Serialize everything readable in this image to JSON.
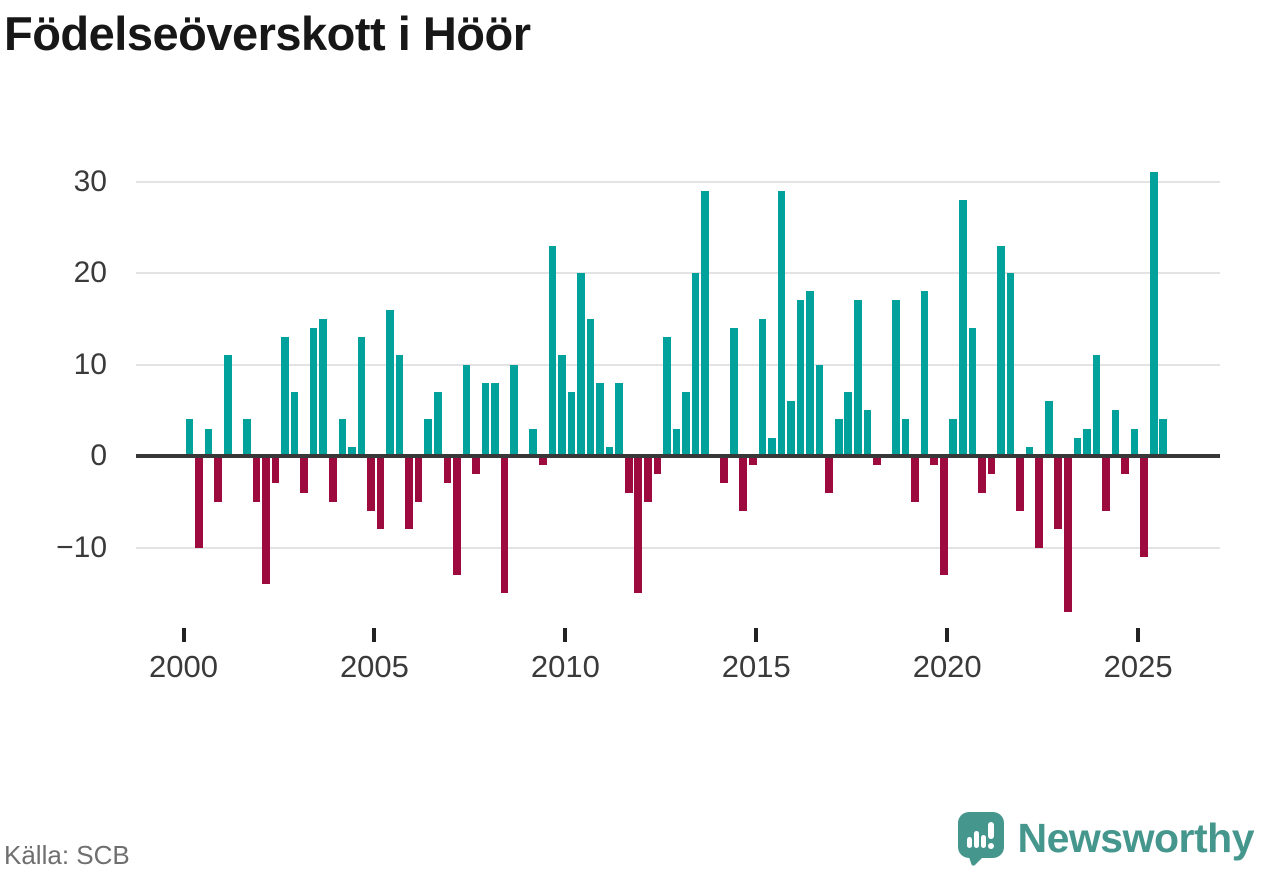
{
  "title": "Födelseöverskott i Höör",
  "source": {
    "label": "Källa: SCB"
  },
  "brand": {
    "name": "Newsworthy",
    "icon": "newsworthy-speech-bubble-bar-chart-icon"
  },
  "colors": {
    "positive_bar": "#00A29B",
    "negative_bar": "#9C0A3E",
    "grid": "#e3e3e3",
    "axis": "#383838",
    "title_text": "#171717",
    "tick_label": "#3a3a3a",
    "source_text": "#6f6f6f",
    "brand_teal": "#45968D"
  },
  "chart_data": {
    "type": "bar",
    "title": "Födelseöverskott i Höör",
    "x_tick_labels": [
      "2000",
      "2005",
      "2010",
      "2015",
      "2020",
      "2025"
    ],
    "y_ticks": [
      30,
      20,
      10,
      0,
      -10
    ],
    "y_tick_labels": [
      "30",
      "20",
      "10",
      "0",
      "−10"
    ],
    "ylim": [
      -18,
      32
    ],
    "grid": "horizontal-only",
    "legend": "none",
    "bars_per_year": 4,
    "years": [
      {
        "year": 2000,
        "values": [
          4,
          -10,
          3,
          -5
        ]
      },
      {
        "year": 2001,
        "values": [
          11,
          0,
          4,
          -5
        ]
      },
      {
        "year": 2002,
        "values": [
          -14,
          -3,
          13,
          7
        ]
      },
      {
        "year": 2003,
        "values": [
          -4,
          14,
          15,
          -5
        ]
      },
      {
        "year": 2004,
        "values": [
          4,
          1,
          13,
          -6
        ]
      },
      {
        "year": 2005,
        "values": [
          -8,
          16,
          11,
          -8
        ]
      },
      {
        "year": 2006,
        "values": [
          -5,
          4,
          7,
          -3
        ]
      },
      {
        "year": 2007,
        "values": [
          -13,
          10,
          -2,
          8
        ]
      },
      {
        "year": 2008,
        "values": [
          8,
          -15,
          10,
          0
        ]
      },
      {
        "year": 2009,
        "values": [
          3,
          -1,
          23,
          11
        ]
      },
      {
        "year": 2010,
        "values": [
          7,
          20,
          15,
          8
        ]
      },
      {
        "year": 2011,
        "values": [
          1,
          8,
          -4,
          -15
        ]
      },
      {
        "year": 2012,
        "values": [
          -5,
          -2,
          13,
          3
        ]
      },
      {
        "year": 2013,
        "values": [
          7,
          20,
          29,
          0
        ]
      },
      {
        "year": 2014,
        "values": [
          -3,
          14,
          -6,
          -1
        ]
      },
      {
        "year": 2015,
        "values": [
          15,
          2,
          29,
          6
        ]
      },
      {
        "year": 2016,
        "values": [
          17,
          18,
          10,
          -4
        ]
      },
      {
        "year": 2017,
        "values": [
          4,
          7,
          17,
          5
        ]
      },
      {
        "year": 2018,
        "values": [
          -1,
          0,
          17,
          4
        ]
      },
      {
        "year": 2019,
        "values": [
          -5,
          18,
          -1,
          -13
        ]
      },
      {
        "year": 2020,
        "values": [
          4,
          28,
          14,
          -4
        ]
      },
      {
        "year": 2021,
        "values": [
          -2,
          23,
          20,
          -6
        ]
      },
      {
        "year": 2022,
        "values": [
          1,
          -10,
          6,
          -8
        ]
      },
      {
        "year": 2023,
        "values": [
          -17,
          2,
          3,
          11
        ]
      },
      {
        "year": 2024,
        "values": [
          -6,
          5,
          -2,
          3
        ]
      },
      {
        "year": 2025,
        "values": [
          -11,
          31,
          4
        ]
      }
    ]
  }
}
